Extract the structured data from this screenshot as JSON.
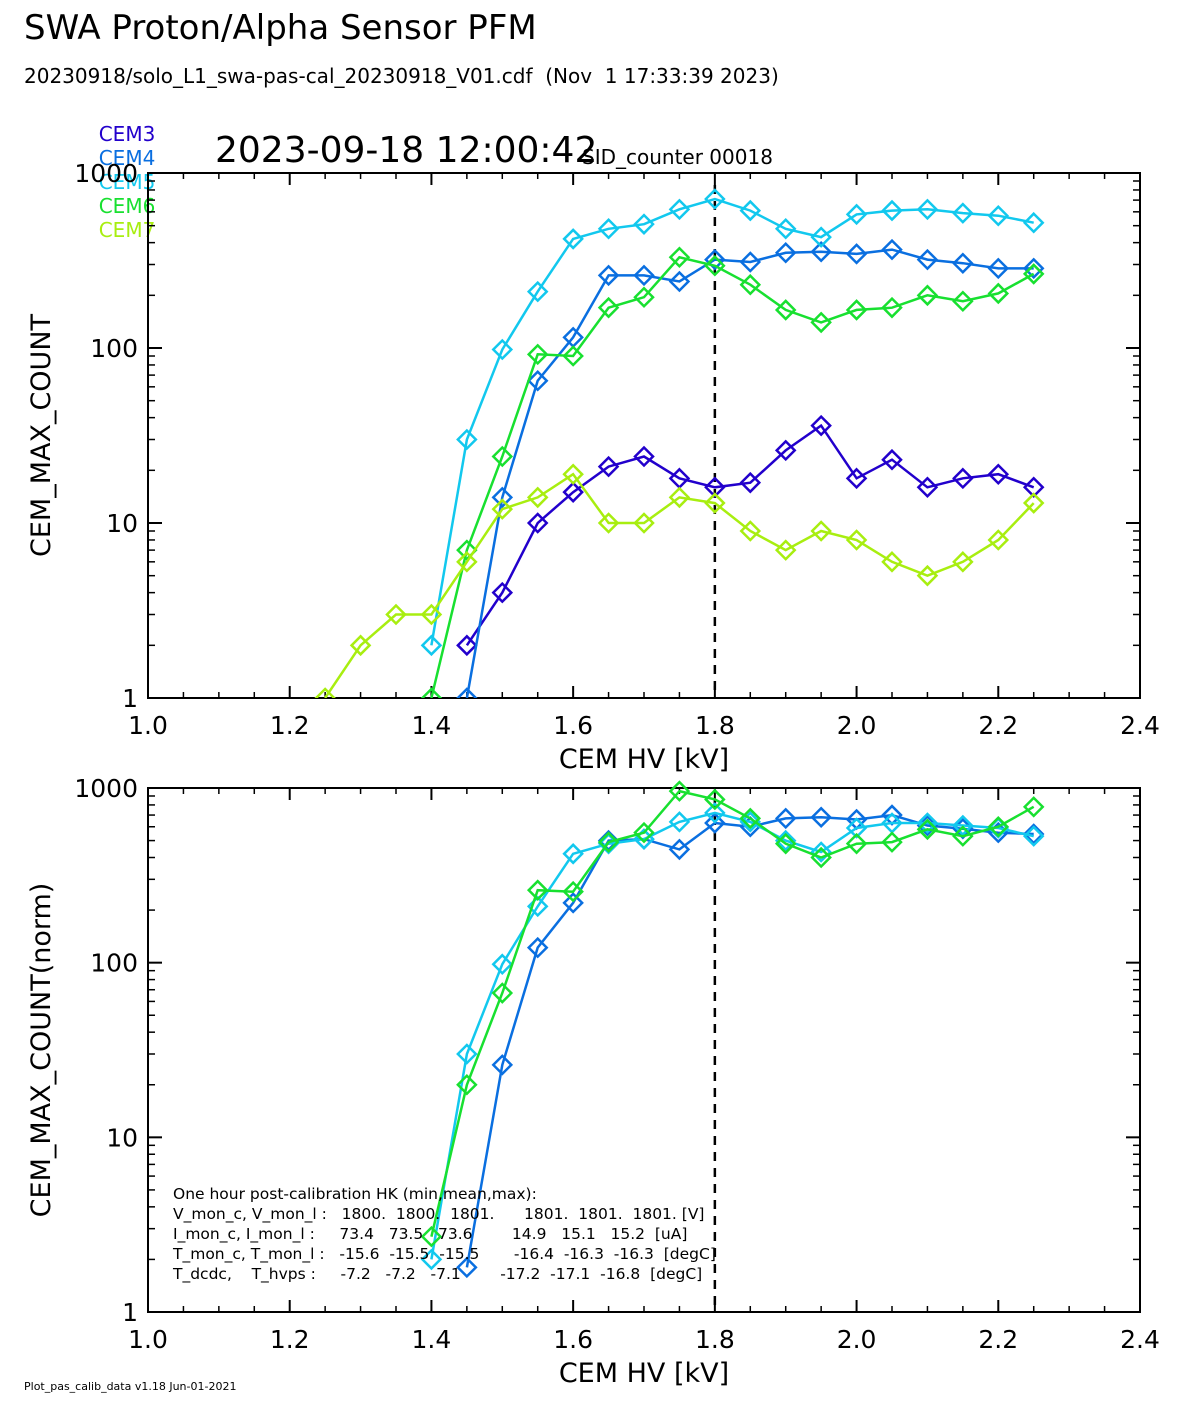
{
  "header": {
    "title": "SWA Proton/Alpha Sensor PFM",
    "subtitle": "20230918/solo_L1_swa-pas-cal_20230918_V01.cdf  (Nov  1 17:33:39 2023)",
    "timestamp": "2023-09-18 12:00:42",
    "sid": "SID_counter 00018"
  },
  "legend": [
    {
      "name": "CEM3",
      "color": "#2200cc"
    },
    {
      "name": "CEM4",
      "color": "#0a6fe0"
    },
    {
      "name": "CEM5",
      "color": "#12c8ee"
    },
    {
      "name": "CEM6",
      "color": "#18e030"
    },
    {
      "name": "CEM7",
      "color": "#a8ee10"
    }
  ],
  "hk": {
    "title": "One hour post-calibration HK (min,mean,max):",
    "lines": [
      "V_mon_c, V_mon_l :   1800.  1800.  1801.      1801.  1801.  1801. [V]",
      "I_mon_c, I_mon_l :     73.4   73.5   73.6        14.9   15.1   15.2  [uA]",
      "T_mon_c, T_mon_l :   -15.6  -15.5  -15.5       -16.4  -16.3  -16.3  [degC]",
      "T_dcdc,    T_hvps :     -7.2   -7.2   -7.1        -17.2  -17.1  -16.8  [degC]"
    ]
  },
  "footer": "Plot_pas_calib_data v1.18 Jun-01-2021",
  "chart_data": [
    {
      "type": "line",
      "xlabel": "CEM HV [kV]",
      "ylabel": "CEM_MAX_COUNT",
      "xlim": [
        1.0,
        2.4
      ],
      "ylim": [
        1,
        1000
      ],
      "yscale": "log",
      "xticks": [
        "1.0",
        "1.2",
        "1.4",
        "1.6",
        "1.8",
        "2.0",
        "2.2",
        "2.4"
      ],
      "yticks": [
        "1",
        "10",
        "100",
        "1000"
      ],
      "vline": 1.8,
      "series": [
        {
          "name": "CEM3",
          "color": "#2200cc",
          "x": [
            1.45,
            1.5,
            1.55,
            1.6,
            1.65,
            1.7,
            1.75,
            1.8,
            1.85,
            1.9,
            1.95,
            2.0,
            2.05,
            2.1,
            2.15,
            2.2,
            2.25
          ],
          "y": [
            2,
            4,
            10,
            15,
            21,
            24,
            18,
            16,
            17,
            26,
            36,
            18,
            23,
            16,
            18,
            19,
            16
          ]
        },
        {
          "name": "CEM4",
          "color": "#0a6fe0",
          "x": [
            1.45,
            1.5,
            1.55,
            1.6,
            1.65,
            1.7,
            1.75,
            1.8,
            1.85,
            1.9,
            1.95,
            2.0,
            2.05,
            2.1,
            2.15,
            2.2,
            2.25
          ],
          "y": [
            1,
            14,
            65,
            115,
            260,
            260,
            240,
            320,
            310,
            350,
            355,
            345,
            365,
            320,
            305,
            285,
            285
          ]
        },
        {
          "name": "CEM5",
          "color": "#12c8ee",
          "x": [
            1.4,
            1.45,
            1.5,
            1.55,
            1.6,
            1.65,
            1.7,
            1.75,
            1.8,
            1.85,
            1.9,
            1.95,
            2.0,
            2.05,
            2.1,
            2.15,
            2.2,
            2.25
          ],
          "y": [
            2,
            30,
            98,
            210,
            420,
            480,
            510,
            620,
            710,
            610,
            480,
            430,
            580,
            610,
            620,
            590,
            570,
            520
          ]
        },
        {
          "name": "CEM6",
          "color": "#18e030",
          "x": [
            1.4,
            1.45,
            1.5,
            1.55,
            1.6,
            1.65,
            1.7,
            1.75,
            1.8,
            1.85,
            1.9,
            1.95,
            2.0,
            2.05,
            2.1,
            2.15,
            2.2,
            2.25
          ],
          "y": [
            1,
            7,
            24,
            92,
            90,
            170,
            195,
            330,
            295,
            230,
            165,
            140,
            165,
            170,
            200,
            185,
            205,
            265
          ]
        },
        {
          "name": "CEM7",
          "color": "#a8ee10",
          "x": [
            1.25,
            1.3,
            1.35,
            1.4,
            1.45,
            1.5,
            1.55,
            1.6,
            1.65,
            1.7,
            1.75,
            1.8,
            1.85,
            1.9,
            1.95,
            2.0,
            2.05,
            2.1,
            2.15,
            2.2,
            2.25
          ],
          "y": [
            1,
            2,
            3,
            3,
            6,
            12,
            14,
            19,
            10,
            10,
            14,
            13,
            9,
            7,
            9,
            8,
            6,
            5,
            6,
            8,
            13
          ]
        }
      ]
    },
    {
      "type": "line",
      "xlabel": "CEM HV [kV]",
      "ylabel": "CEM_MAX_COUNT(norm)",
      "xlim": [
        1.0,
        2.4
      ],
      "ylim": [
        1,
        1000
      ],
      "yscale": "log",
      "xticks": [
        "1.0",
        "1.2",
        "1.4",
        "1.6",
        "1.8",
        "2.0",
        "2.2",
        "2.4"
      ],
      "yticks": [
        "1",
        "10",
        "100",
        "1000"
      ],
      "vline": 1.8,
      "series": [
        {
          "name": "CEM4",
          "color": "#0a6fe0",
          "x": [
            1.45,
            1.5,
            1.55,
            1.6,
            1.65,
            1.7,
            1.75,
            1.8,
            1.85,
            1.9,
            1.95,
            2.0,
            2.05,
            2.1,
            2.15,
            2.2,
            2.25
          ],
          "y": [
            1.8,
            26,
            122,
            220,
            500,
            510,
            445,
            630,
            600,
            670,
            680,
            660,
            700,
            610,
            585,
            555,
            545
          ]
        },
        {
          "name": "CEM5",
          "color": "#12c8ee",
          "x": [
            1.4,
            1.45,
            1.5,
            1.55,
            1.6,
            1.65,
            1.7,
            1.75,
            1.8,
            1.85,
            1.9,
            1.95,
            2.0,
            2.05,
            2.1,
            2.15,
            2.2,
            2.25
          ],
          "y": [
            2,
            30,
            98,
            210,
            420,
            480,
            510,
            640,
            720,
            640,
            500,
            430,
            590,
            630,
            630,
            610,
            590,
            530
          ]
        },
        {
          "name": "CEM6",
          "color": "#18e030",
          "x": [
            1.4,
            1.45,
            1.5,
            1.55,
            1.6,
            1.65,
            1.7,
            1.75,
            1.8,
            1.85,
            1.9,
            1.95,
            2.0,
            2.05,
            2.1,
            2.15,
            2.2,
            2.25
          ],
          "y": [
            2.7,
            20,
            67,
            260,
            255,
            490,
            555,
            960,
            860,
            670,
            480,
            400,
            480,
            490,
            580,
            530,
            600,
            780
          ]
        }
      ]
    }
  ]
}
